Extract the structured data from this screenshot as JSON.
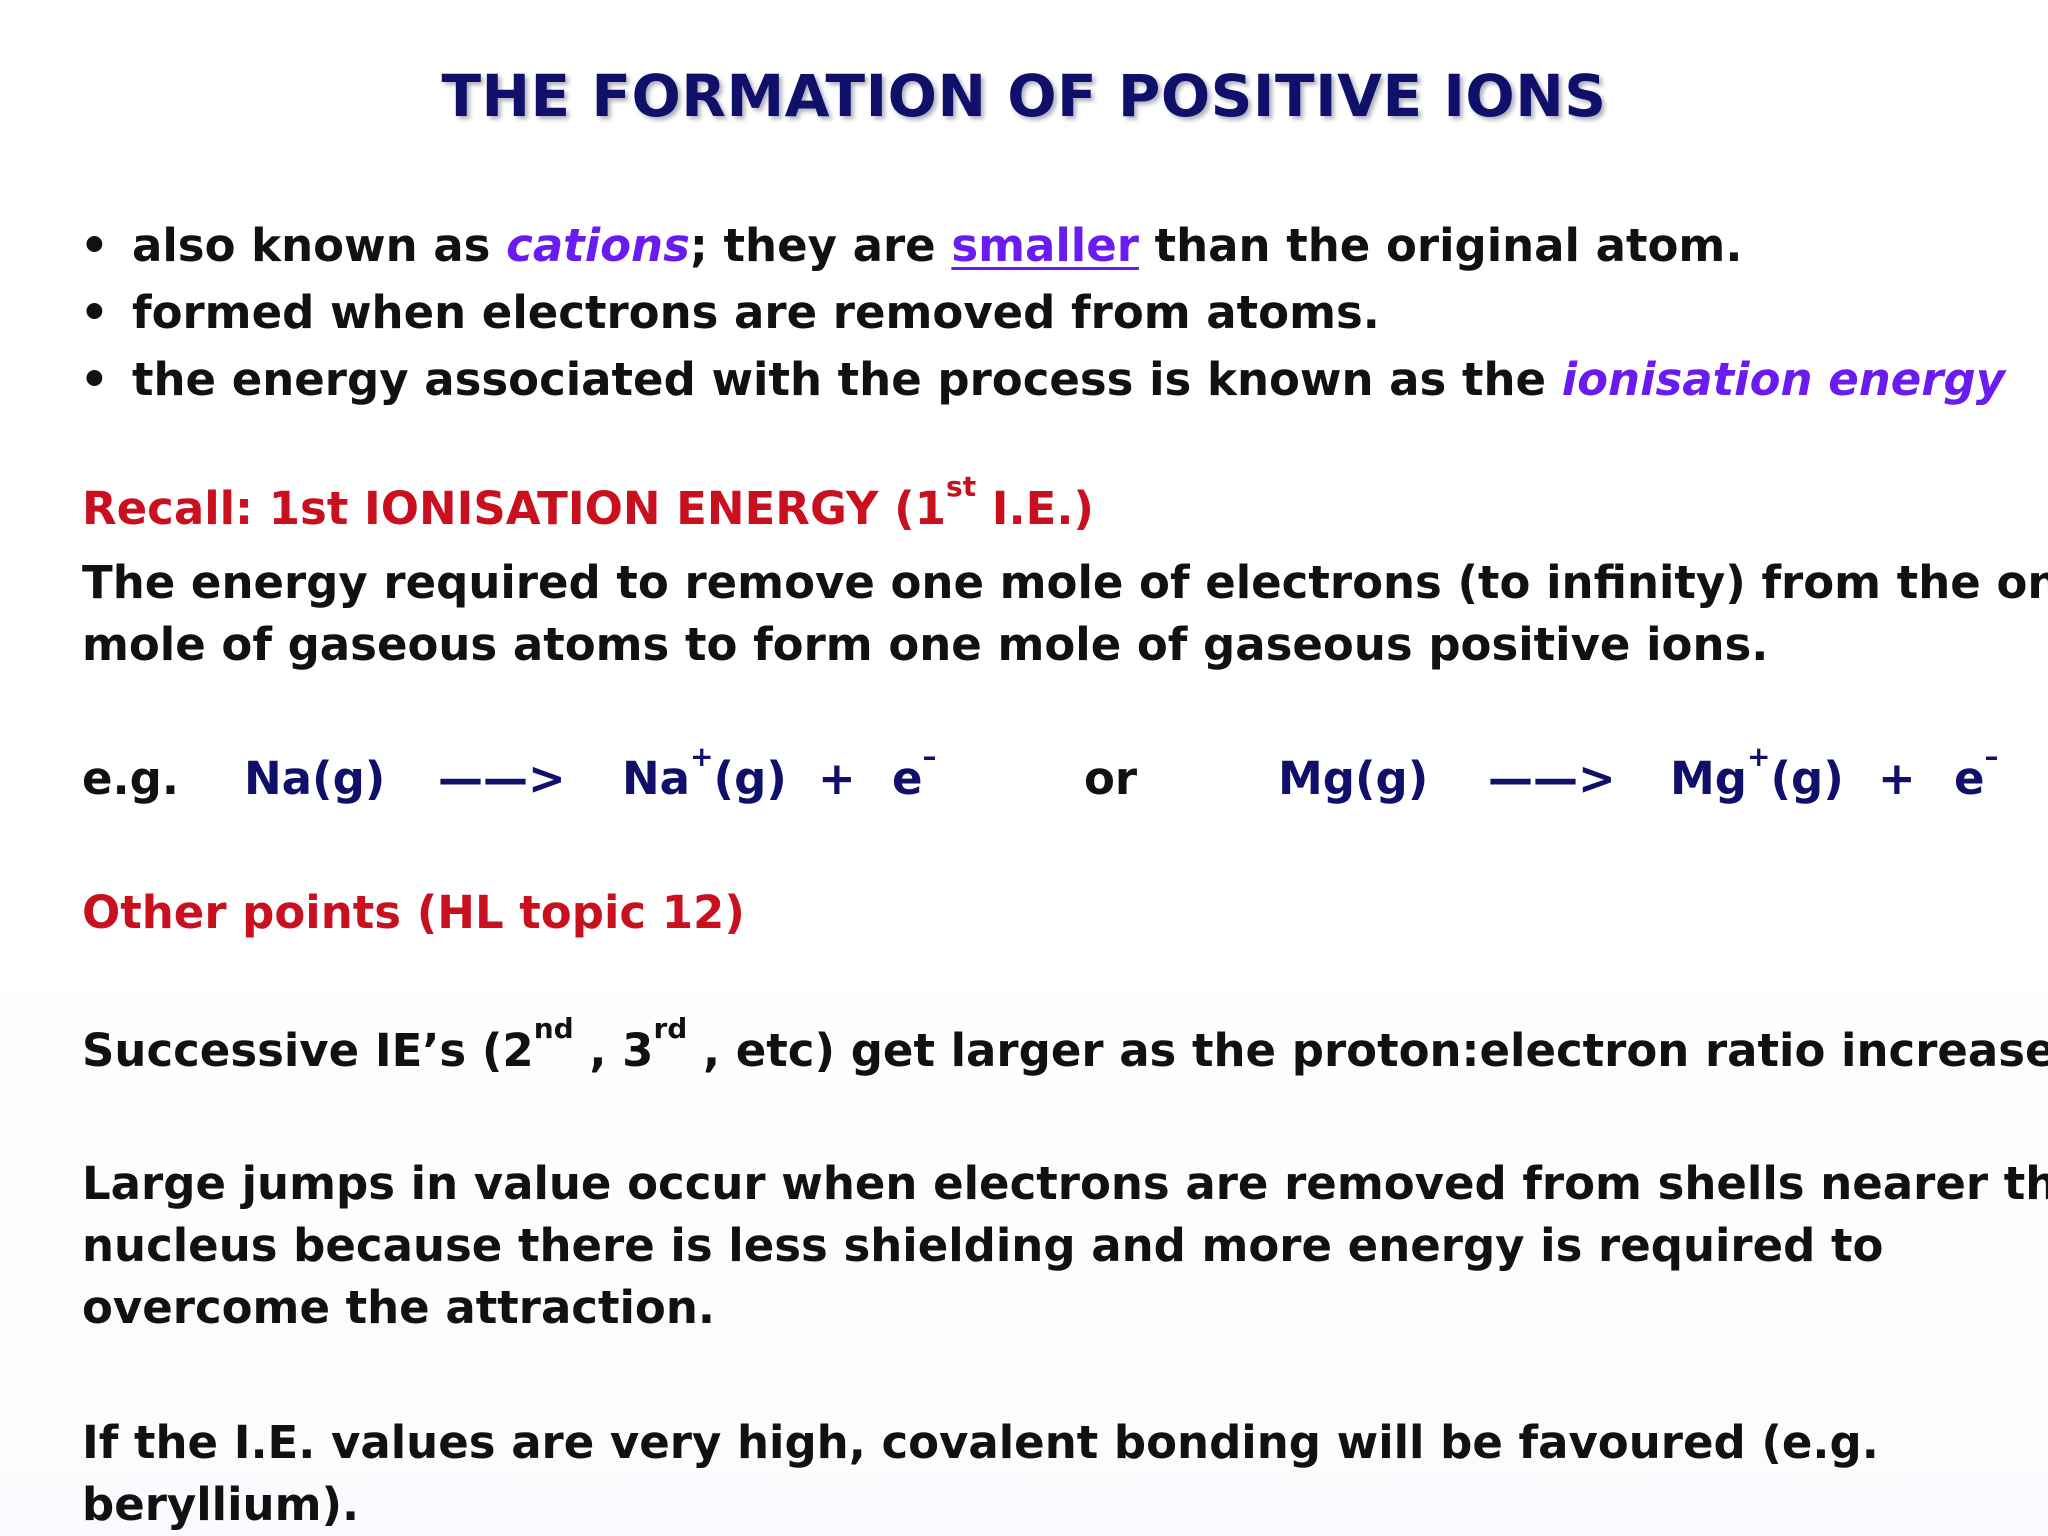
{
  "title": "THE FORMATION OF POSITIVE IONS",
  "bullets": {
    "b1_pre": "also known as ",
    "b1_em": "cations",
    "b1_mid": ";  they are ",
    "b1_link": "smaller",
    "b1_post": " than the original atom.",
    "b2": "formed when electrons are removed from atoms.",
    "b3_pre": "the energy associated with the process is known as the ",
    "b3_em": "ionisation energy"
  },
  "recall": {
    "heading_pre": "Recall: 1st IONISATION ENERGY (1",
    "heading_sup": "st",
    "heading_post": " I.E.)",
    "line1": "The energy required to remove one mole of electrons (to infinity) from the one",
    "line2": "mole of gaseous  atoms to form one mole of gaseous positive ions."
  },
  "equation": {
    "eg": "e.g.",
    "reactant1": "Na(g)",
    "arrow": "——>",
    "product1_symbol": "Na",
    "charge_plus": "+",
    "phase": "(g)",
    "plus": "+",
    "electron": "e",
    "charge_minus": "–",
    "or": "or",
    "reactant2": "Mg(g)",
    "product2_symbol": "Mg"
  },
  "other": {
    "heading": "Other points (HL topic 12)",
    "succ_pre": "Successive IE’s (2",
    "succ_sup1": "nd",
    "succ_mid": " , 3",
    "succ_sup2": "rd",
    "succ_post": " , etc) get larger as the proton:electron ratio increases.",
    "large1": "Large jumps in value occur when electrons are removed from shells nearer the",
    "large2": "nucleus because there is less shielding and more energy is required to",
    "large3": "overcome the attraction.",
    "high1": "If the I.E. values are very high, covalent bonding will be favoured  (e.g.",
    "high2": "beryllium)."
  }
}
